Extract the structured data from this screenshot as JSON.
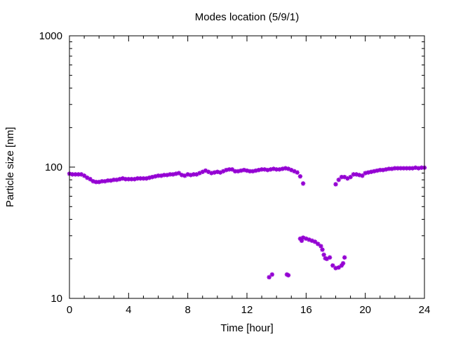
{
  "chart_data": {
    "type": "scatter",
    "title": "Modes location (5/9/1)",
    "xlabel": "Time [hour]",
    "ylabel": "Particle size [nm]",
    "xlim": [
      0,
      24
    ],
    "ylim": [
      10,
      1000
    ],
    "yscale": "log",
    "x_ticks": [
      0,
      4,
      8,
      12,
      16,
      20,
      24
    ],
    "x_tick_labels": [
      "0",
      "4",
      "8",
      "12",
      "16",
      "20",
      "24"
    ],
    "y_ticks": [
      10,
      100,
      1000
    ],
    "y_tick_labels": [
      "10",
      "100",
      "1000"
    ],
    "grid": false,
    "legend": "none",
    "marker": "star",
    "series": [
      {
        "color": "#9400d3",
        "points": [
          [
            0.0,
            89
          ],
          [
            0.2,
            88
          ],
          [
            0.4,
            88
          ],
          [
            0.6,
            88
          ],
          [
            0.8,
            88
          ],
          [
            1.0,
            86
          ],
          [
            1.2,
            83
          ],
          [
            1.4,
            81
          ],
          [
            1.6,
            78
          ],
          [
            1.8,
            77
          ],
          [
            2.0,
            77
          ],
          [
            2.2,
            78
          ],
          [
            2.4,
            78
          ],
          [
            2.6,
            79
          ],
          [
            2.8,
            79
          ],
          [
            3.0,
            80
          ],
          [
            3.2,
            80
          ],
          [
            3.4,
            81
          ],
          [
            3.6,
            82
          ],
          [
            3.8,
            81
          ],
          [
            4.0,
            81
          ],
          [
            4.2,
            81
          ],
          [
            4.4,
            81
          ],
          [
            4.6,
            82
          ],
          [
            4.8,
            82
          ],
          [
            5.0,
            82
          ],
          [
            5.2,
            82
          ],
          [
            5.4,
            83
          ],
          [
            5.6,
            84
          ],
          [
            5.8,
            85
          ],
          [
            6.0,
            86
          ],
          [
            6.2,
            86
          ],
          [
            6.4,
            87
          ],
          [
            6.6,
            87
          ],
          [
            6.8,
            88
          ],
          [
            7.0,
            88
          ],
          [
            7.2,
            89
          ],
          [
            7.4,
            90
          ],
          [
            7.6,
            87
          ],
          [
            7.8,
            86
          ],
          [
            8.0,
            88
          ],
          [
            8.2,
            87
          ],
          [
            8.4,
            88
          ],
          [
            8.6,
            88
          ],
          [
            8.8,
            90
          ],
          [
            9.0,
            92
          ],
          [
            9.2,
            94
          ],
          [
            9.4,
            92
          ],
          [
            9.6,
            90
          ],
          [
            9.8,
            91
          ],
          [
            10.0,
            92
          ],
          [
            10.2,
            91
          ],
          [
            10.4,
            93
          ],
          [
            10.6,
            95
          ],
          [
            10.8,
            96
          ],
          [
            11.0,
            96
          ],
          [
            11.2,
            93
          ],
          [
            11.4,
            93
          ],
          [
            11.6,
            94
          ],
          [
            11.8,
            95
          ],
          [
            12.0,
            94
          ],
          [
            12.2,
            93
          ],
          [
            12.4,
            93
          ],
          [
            12.6,
            94
          ],
          [
            12.8,
            95
          ],
          [
            13.0,
            96
          ],
          [
            13.2,
            96
          ],
          [
            13.4,
            95
          ],
          [
            13.6,
            96
          ],
          [
            13.8,
            97
          ],
          [
            14.0,
            96
          ],
          [
            14.2,
            96
          ],
          [
            14.4,
            97
          ],
          [
            14.6,
            98
          ],
          [
            14.8,
            97
          ],
          [
            15.0,
            95
          ],
          [
            15.2,
            93
          ],
          [
            15.4,
            91
          ],
          [
            15.6,
            85
          ],
          [
            15.8,
            75
          ],
          [
            13.5,
            14.5
          ],
          [
            13.7,
            15.2
          ],
          [
            14.7,
            15.2
          ],
          [
            14.8,
            15.0
          ],
          [
            15.6,
            28.5
          ],
          [
            15.7,
            27.5
          ],
          [
            15.8,
            29.0
          ],
          [
            16.0,
            28.5
          ],
          [
            16.2,
            28.0
          ],
          [
            16.4,
            27.5
          ],
          [
            16.6,
            27.0
          ],
          [
            16.8,
            26.0
          ],
          [
            17.0,
            25.0
          ],
          [
            17.1,
            23.5
          ],
          [
            17.2,
            21.5
          ],
          [
            17.3,
            20.2
          ],
          [
            17.4,
            20.0
          ],
          [
            17.6,
            20.5
          ],
          [
            17.8,
            17.8
          ],
          [
            18.0,
            17.0
          ],
          [
            18.2,
            17.2
          ],
          [
            18.4,
            17.8
          ],
          [
            18.5,
            18.5
          ],
          [
            18.6,
            20.5
          ],
          [
            18.0,
            74
          ],
          [
            18.2,
            80
          ],
          [
            18.4,
            84
          ],
          [
            18.6,
            84
          ],
          [
            18.8,
            82
          ],
          [
            19.0,
            84
          ],
          [
            19.2,
            88
          ],
          [
            19.4,
            88
          ],
          [
            19.6,
            87
          ],
          [
            19.8,
            86
          ],
          [
            20.0,
            90
          ],
          [
            20.2,
            91
          ],
          [
            20.4,
            92
          ],
          [
            20.6,
            93
          ],
          [
            20.8,
            94
          ],
          [
            21.0,
            95
          ],
          [
            21.2,
            95
          ],
          [
            21.4,
            96
          ],
          [
            21.6,
            97
          ],
          [
            21.8,
            97
          ],
          [
            22.0,
            98
          ],
          [
            22.2,
            98
          ],
          [
            22.4,
            98
          ],
          [
            22.6,
            98
          ],
          [
            22.8,
            98
          ],
          [
            23.0,
            98
          ],
          [
            23.2,
            98
          ],
          [
            23.4,
            99
          ],
          [
            23.6,
            98
          ],
          [
            23.8,
            99
          ],
          [
            24.0,
            99
          ]
        ]
      }
    ]
  }
}
